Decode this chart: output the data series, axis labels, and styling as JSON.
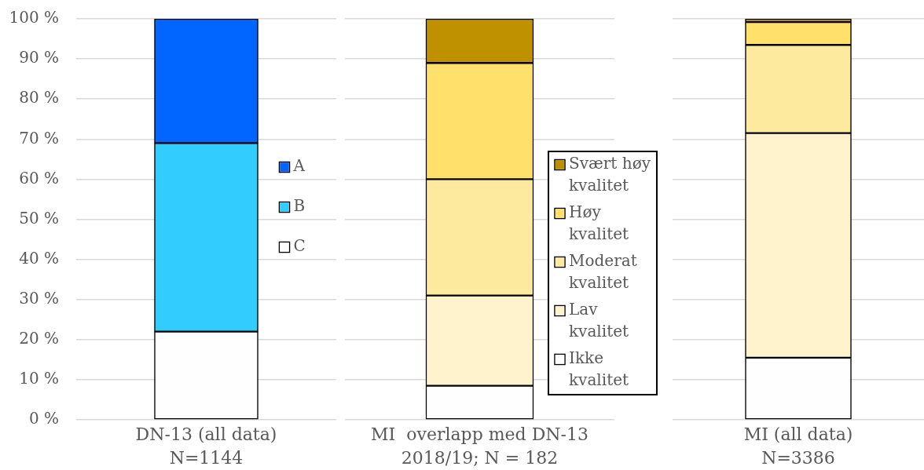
{
  "chart_data": [
    {
      "type": "bar",
      "categories": [
        "DN-13 (all data)\nN=1144"
      ],
      "stacked": true,
      "series": [
        {
          "name": "C",
          "color": "#fefefe",
          "values": [
            22
          ]
        },
        {
          "name": "B",
          "color": "#33ccff",
          "values": [
            47
          ]
        },
        {
          "name": "A",
          "color": "#0066ff",
          "values": [
            31
          ]
        }
      ],
      "ylim": [
        0,
        100
      ],
      "yticks": [
        {
          "value": 0,
          "label": "0 %"
        },
        {
          "value": 10,
          "label": "10 %"
        },
        {
          "value": 20,
          "label": "20 %"
        },
        {
          "value": 30,
          "label": "30 %"
        },
        {
          "value": 40,
          "label": "40 %"
        },
        {
          "value": 50,
          "label": "50 %"
        },
        {
          "value": 60,
          "label": "60 %"
        },
        {
          "value": 70,
          "label": "70 %"
        },
        {
          "value": 80,
          "label": "80 %"
        },
        {
          "value": 90,
          "label": "90 %"
        },
        {
          "value": 100,
          "label": "100 %"
        }
      ],
      "grid": "y",
      "legend": "right"
    },
    {
      "type": "bar",
      "categories": [
        "MI  overlapp med DN-13\n2018/19; N = 182"
      ],
      "stacked": true,
      "series": [
        {
          "name": "Ikke kvalitet",
          "color": "#fefefe",
          "values": [
            8.5
          ]
        },
        {
          "name": "Lav kvalitet",
          "color": "#fff3cd",
          "values": [
            22.5
          ]
        },
        {
          "name": "Moderat kvalitet",
          "color": "#feea9f",
          "values": [
            29
          ]
        },
        {
          "name": "Høy kvalitet",
          "color": "#ffe06b",
          "values": [
            29
          ]
        },
        {
          "name": "Svært høy kvalitet",
          "color": "#bf9000",
          "values": [
            11
          ]
        }
      ],
      "ylim": [
        0,
        100
      ],
      "yticks": [
        0,
        10,
        20,
        30,
        40,
        50,
        60,
        70,
        80,
        90,
        100
      ],
      "tick_labels": "x",
      "grid": "y",
      "legend": "right"
    },
    {
      "type": "bar",
      "categories": [
        "MI (all data)\nN=3386"
      ],
      "stacked": true,
      "series": [
        {
          "color": "#fefefe",
          "values": [
            15.5
          ]
        },
        {
          "color": "#fff3cd",
          "values": [
            56
          ]
        },
        {
          "color": "#feea9f",
          "values": [
            22
          ]
        },
        {
          "color": "#ffe06b",
          "values": [
            5.7
          ]
        },
        {
          "color": "#bf9000",
          "values": [
            0.8
          ]
        }
      ],
      "ylim": [
        0,
        100
      ],
      "yticks": [
        0,
        10,
        20,
        30,
        40,
        50,
        60,
        70,
        80,
        90,
        100
      ],
      "tick_labels": "x",
      "grid": "y"
    }
  ]
}
